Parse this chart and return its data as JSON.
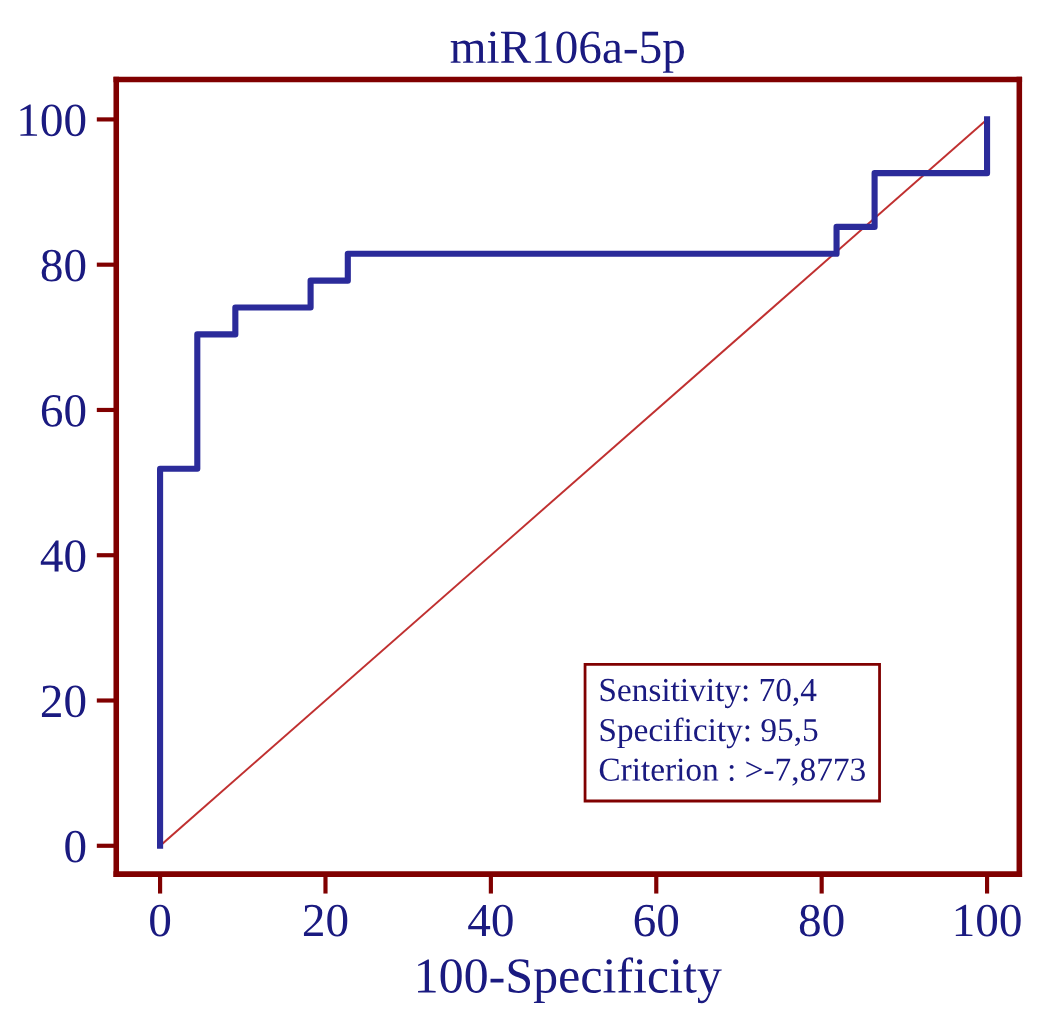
{
  "chart_data": {
    "type": "line",
    "title": "miR106a-5p",
    "xlabel": "100-Specificity",
    "xlim": [
      -5.3,
      103.9
    ],
    "ylim": [
      -3.9,
      105.5
    ],
    "xticks": [
      0,
      20,
      40,
      60,
      80,
      100
    ],
    "yticks": [
      0,
      20,
      40,
      60,
      80,
      100
    ],
    "grid": false,
    "legend": false,
    "series": [
      {
        "x": [
          0,
          0,
          4.5,
          4.5,
          9.1,
          9.1,
          18.2,
          18.2,
          22.7,
          22.7,
          81.8,
          81.8,
          86.4,
          86.4,
          100,
          100
        ],
        "values": [
          0,
          51.9,
          51.9,
          70.4,
          70.4,
          74.1,
          74.1,
          77.8,
          77.8,
          81.5,
          81.5,
          85.2,
          85.2,
          92.6,
          92.6,
          100
        ],
        "color": "#2b2b9a"
      },
      {
        "x": [
          0,
          100
        ],
        "values": [
          0,
          100
        ],
        "color": "#c03030"
      }
    ],
    "annotations": [
      "Sensitivity: 70,4\nSpecificity: 95,5\nCriterion : >-7,8773"
    ]
  }
}
